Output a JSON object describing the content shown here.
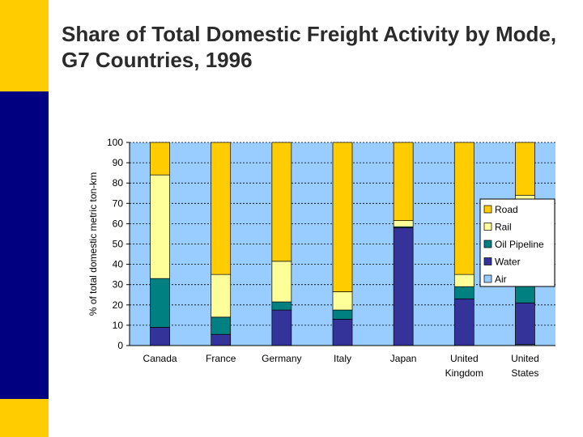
{
  "slide": {
    "title": "Share of Total Domestic Freight Activity by Mode, G7 Countries, 1996"
  },
  "colors": {
    "Road": "#ffcc00",
    "Rail": "#ffff99",
    "Oil Pipeline": "#008080",
    "Water": "#333399",
    "Air": "#99ccff",
    "plot_background": "#99ccff"
  },
  "chart_data": {
    "type": "bar",
    "stacked": true,
    "title": "",
    "xlabel": "",
    "ylabel": "% of total domestic metric ton-km",
    "ylim": [
      0,
      100
    ],
    "yticks": [
      "0",
      "10",
      "20",
      "30",
      "40",
      "50",
      "60",
      "70",
      "80",
      "90",
      "100"
    ],
    "categories": [
      "Canada",
      "France",
      "Germany",
      "Italy",
      "Japan",
      "United Kingdom",
      "United States"
    ],
    "category_lines": [
      [
        "Canada"
      ],
      [
        "France"
      ],
      [
        "Germany"
      ],
      [
        "Italy"
      ],
      [
        "Japan"
      ],
      [
        "United",
        "Kingdom"
      ],
      [
        "United",
        "States"
      ]
    ],
    "series": [
      {
        "name": "Air",
        "values": [
          0,
          0,
          0,
          0,
          0,
          0,
          0.5
        ]
      },
      {
        "name": "Water",
        "values": [
          9,
          5.5,
          17.5,
          13,
          58,
          23,
          20.5
        ]
      },
      {
        "name": "Oil Pipeline",
        "values": [
          24,
          8.5,
          4,
          4.5,
          0.5,
          6,
          17
        ]
      },
      {
        "name": "Rail",
        "values": [
          51,
          21,
          20,
          9,
          3,
          6,
          36
        ]
      },
      {
        "name": "Road",
        "values": [
          16,
          65,
          58.5,
          73.5,
          38.5,
          65,
          26
        ]
      }
    ],
    "legend_order": [
      "Road",
      "Rail",
      "Oil Pipeline",
      "Water",
      "Air"
    ],
    "legend_position": "right",
    "grid": true
  }
}
